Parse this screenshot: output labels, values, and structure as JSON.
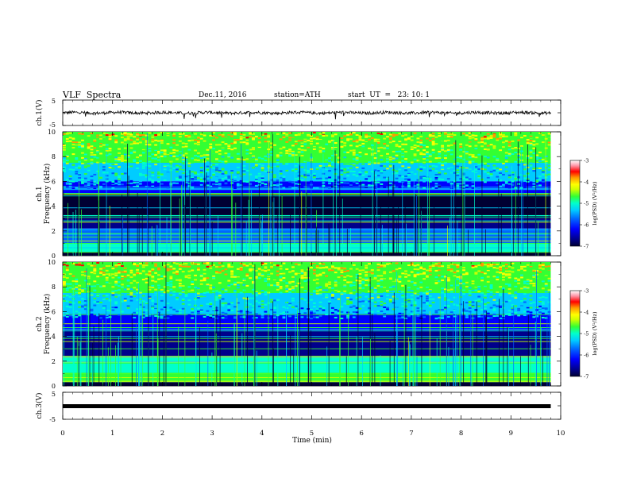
{
  "header": {
    "title": "VLF  Spectra",
    "date": "Dec.11, 2016",
    "station": "station=ATH",
    "start": "start  UT  =   23: 10: 1"
  },
  "colors": {
    "palette": [
      "#000033",
      "#00008b",
      "#0000ff",
      "#0066ff",
      "#00ccff",
      "#00ffcc",
      "#33ff33",
      "#ccff00",
      "#ffff00",
      "#ff9900",
      "#ff0000",
      "#ff99aa",
      "#ffffff"
    ]
  },
  "chart_data": [
    {
      "type": "line",
      "id": "ch1-waveform",
      "ylabel": "ch.1(V)",
      "ylim": [
        -5,
        5
      ],
      "yticks": [
        "5",
        "-5"
      ],
      "x_range_min": [
        0,
        9.8
      ],
      "series_description": "noisy signal centered near 0 V, amplitude about ±0.8 V with occasional negative spikes"
    },
    {
      "type": "heatmap",
      "id": "ch1-spectrogram",
      "ylabel": "ch.1\nFrequency (kHz)",
      "ylim": [
        0,
        10
      ],
      "yticks": [
        "0",
        "2",
        "4",
        "6",
        "8",
        "10"
      ],
      "colorbar": {
        "label": "log(PSD) (V²/Hz)",
        "min": -7,
        "max": -3,
        "ticks": [
          "-3",
          "-4",
          "-5",
          "-6",
          "-7"
        ]
      },
      "x_range_min": [
        0,
        9.8
      ],
      "bands_khz": [
        {
          "range": [
            7.5,
            10
          ],
          "level": -4.7
        },
        {
          "range": [
            6.0,
            7.5
          ],
          "level": -5.5
        },
        {
          "range": [
            5.0,
            6.0
          ],
          "level": -6.3
        },
        {
          "range": [
            3.0,
            5.0
          ],
          "level": -6.9
        },
        {
          "range": [
            2.2,
            3.0
          ],
          "level": -6.4
        },
        {
          "range": [
            1.0,
            2.2
          ],
          "level": -5.9
        },
        {
          "range": [
            0.3,
            1.0
          ],
          "level": -5.2
        }
      ]
    },
    {
      "type": "heatmap",
      "id": "ch2-spectrogram",
      "ylabel": "ch.2\nFrequency (kHz)",
      "ylim": [
        0,
        10
      ],
      "yticks": [
        "0",
        "2",
        "4",
        "6",
        "8",
        "10"
      ],
      "colorbar": {
        "label": "log(PSD) (V²/Hz)",
        "min": -7,
        "max": -3,
        "ticks": [
          "-3",
          "-4",
          "-5",
          "-6",
          "-7"
        ]
      },
      "x_range_min": [
        0,
        9.8
      ],
      "bands_khz": [
        {
          "range": [
            7.5,
            10
          ],
          "level": -4.8
        },
        {
          "range": [
            5.8,
            7.5
          ],
          "level": -5.6
        },
        {
          "range": [
            4.5,
            5.8
          ],
          "level": -6.2
        },
        {
          "range": [
            2.4,
            4.5
          ],
          "level": -6.4
        },
        {
          "range": [
            1.0,
            2.4
          ],
          "level": -5.3
        },
        {
          "range": [
            0.3,
            1.0
          ],
          "level": -5.0
        }
      ]
    },
    {
      "type": "line",
      "id": "ch3-waveform",
      "ylabel": "ch.3(V)",
      "ylim": [
        -5,
        5
      ],
      "yticks": [
        "5",
        "-5"
      ],
      "x_range_min": [
        0,
        9.8
      ],
      "series_description": "thick flat trace near -1.5 V"
    }
  ],
  "x_axis": {
    "label": "Time  (min)",
    "ticks": [
      "0",
      "1",
      "2",
      "3",
      "4",
      "5",
      "6",
      "7",
      "8",
      "9",
      "10"
    ],
    "xlim": [
      0,
      10
    ]
  }
}
